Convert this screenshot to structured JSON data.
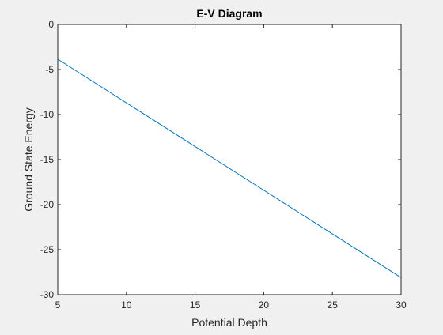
{
  "chart_data": {
    "type": "line",
    "title": "E-V Diagram",
    "xlabel": "Potential Depth",
    "ylabel": "Ground State Energy",
    "xlim": [
      5,
      30
    ],
    "ylim": [
      -30,
      0
    ],
    "x_ticks": [
      5,
      10,
      15,
      20,
      25,
      30
    ],
    "y_ticks": [
      0,
      -5,
      -10,
      -15,
      -20,
      -25,
      -30
    ],
    "x_tick_labels": [
      "5",
      "10",
      "15",
      "20",
      "25",
      "30"
    ],
    "y_tick_labels": [
      "0",
      "-5",
      "-10",
      "-15",
      "-20",
      "-25",
      "-30"
    ],
    "grid": false,
    "legend": "none",
    "colors": {
      "figure_background": "#f0f0f0",
      "axes_background": "#ffffff",
      "axes_color": "#262626",
      "series_color": "#0072bd"
    },
    "series": [
      {
        "x": [
          5,
          10,
          15,
          20,
          25,
          30
        ],
        "values": [
          -3.85,
          -8.7,
          -13.55,
          -18.4,
          -23.25,
          -28.1
        ]
      }
    ]
  }
}
